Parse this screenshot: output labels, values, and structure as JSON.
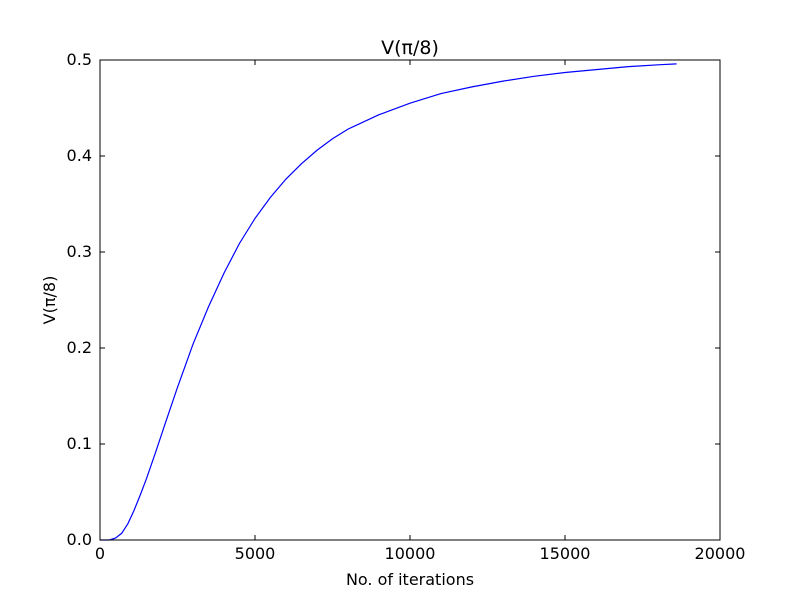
{
  "chart_data": {
    "type": "line",
    "title": "V(π/8)",
    "xlabel": "No. of iterations",
    "ylabel": "V(π/8)",
    "xlim": [
      0,
      20000
    ],
    "ylim": [
      0.0,
      0.5
    ],
    "x_ticks": [
      "0",
      "5000",
      "10000",
      "15000",
      "20000"
    ],
    "y_ticks": [
      "0.0",
      "0.1",
      "0.2",
      "0.3",
      "0.4",
      "0.5"
    ],
    "grid": false,
    "line_color": "#0000ff",
    "series": [
      {
        "x": [
          0,
          300,
          500,
          700,
          900,
          1100,
          1300,
          1500,
          1800,
          2100,
          2500,
          3000,
          3500,
          4000,
          4500,
          5000,
          5500,
          6000,
          6500,
          7000,
          7500,
          8000,
          9000,
          10000,
          11000,
          12000,
          13000,
          14000,
          15000,
          16000,
          17000,
          18000,
          18600
        ],
        "y": [
          0.0,
          0.0,
          0.002,
          0.007,
          0.017,
          0.031,
          0.047,
          0.064,
          0.092,
          0.121,
          0.159,
          0.204,
          0.243,
          0.278,
          0.309,
          0.335,
          0.357,
          0.376,
          0.392,
          0.406,
          0.418,
          0.428,
          0.443,
          0.455,
          0.465,
          0.472,
          0.478,
          0.483,
          0.487,
          0.49,
          0.493,
          0.495,
          0.496
        ]
      }
    ]
  }
}
